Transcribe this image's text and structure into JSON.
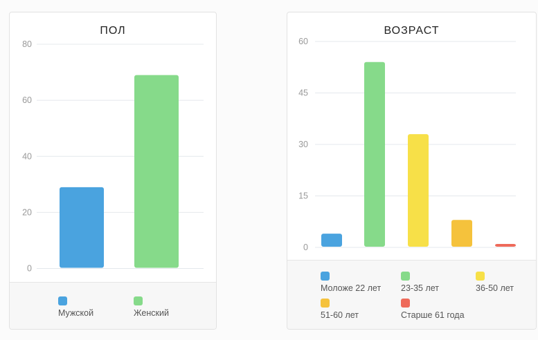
{
  "chart_data": [
    {
      "type": "bar",
      "title": "ПОЛ",
      "categories": [
        "Мужской",
        "Женский"
      ],
      "values": [
        29,
        69
      ],
      "colors": [
        "#4aa3df",
        "#86da8a"
      ],
      "ylim": [
        0,
        80
      ],
      "yticks": [
        "0",
        "20",
        "40",
        "60",
        "80"
      ],
      "grid": true,
      "legend": "bottom"
    },
    {
      "type": "bar",
      "title": "ВОЗРАСТ",
      "categories": [
        "Моложе 22 лет",
        "23-35 лет",
        "36-50 лет",
        "51-60 лет",
        "Старше 61 года"
      ],
      "values": [
        4,
        54,
        33,
        8,
        1
      ],
      "colors": [
        "#4aa3df",
        "#86da8a",
        "#f7e048",
        "#f5c23c",
        "#ee6a5a"
      ],
      "ylim": [
        0,
        60
      ],
      "yticks": [
        "0",
        "15",
        "30",
        "45",
        "60"
      ],
      "grid": true,
      "legend": "bottom"
    }
  ]
}
